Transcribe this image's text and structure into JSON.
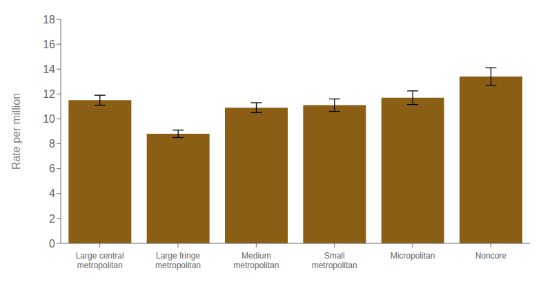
{
  "chart_data": {
    "type": "bar",
    "categories": [
      "Large central\nmetropolitan",
      "Large fringe\nmetropolitan",
      "Medium\nmetropolitan",
      "Small\nmetropolitan",
      "Micropolitan",
      "Noncore"
    ],
    "values": [
      11.5,
      8.8,
      10.9,
      11.1,
      11.7,
      13.4
    ],
    "errors_low": [
      0.4,
      0.3,
      0.4,
      0.5,
      0.55,
      0.7
    ],
    "errors_high": [
      0.4,
      0.3,
      0.4,
      0.5,
      0.55,
      0.7
    ],
    "color": "#8B5E15",
    "ylabel": "Rate per million",
    "ylim": [
      0,
      18
    ],
    "yticks": [
      0,
      2,
      4,
      6,
      8,
      10,
      12,
      14,
      16,
      18
    ],
    "grid": false
  }
}
